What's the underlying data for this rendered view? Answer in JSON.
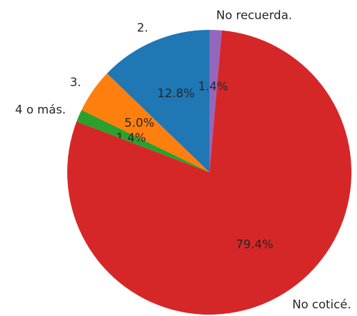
{
  "chart_data": {
    "type": "pie",
    "categories": [
      "2.",
      "3.",
      "4 o más.",
      "No coticé.",
      "No recuerda."
    ],
    "values": [
      12.8,
      5.0,
      1.4,
      79.4,
      1.4
    ],
    "value_labels": [
      "12.8%",
      "5.0%",
      "1.4%",
      "79.4%",
      "1.4%"
    ],
    "colors": [
      "#1f77b4",
      "#ff7f0e",
      "#2ca02c",
      "#d62728",
      "#9467bd"
    ]
  }
}
